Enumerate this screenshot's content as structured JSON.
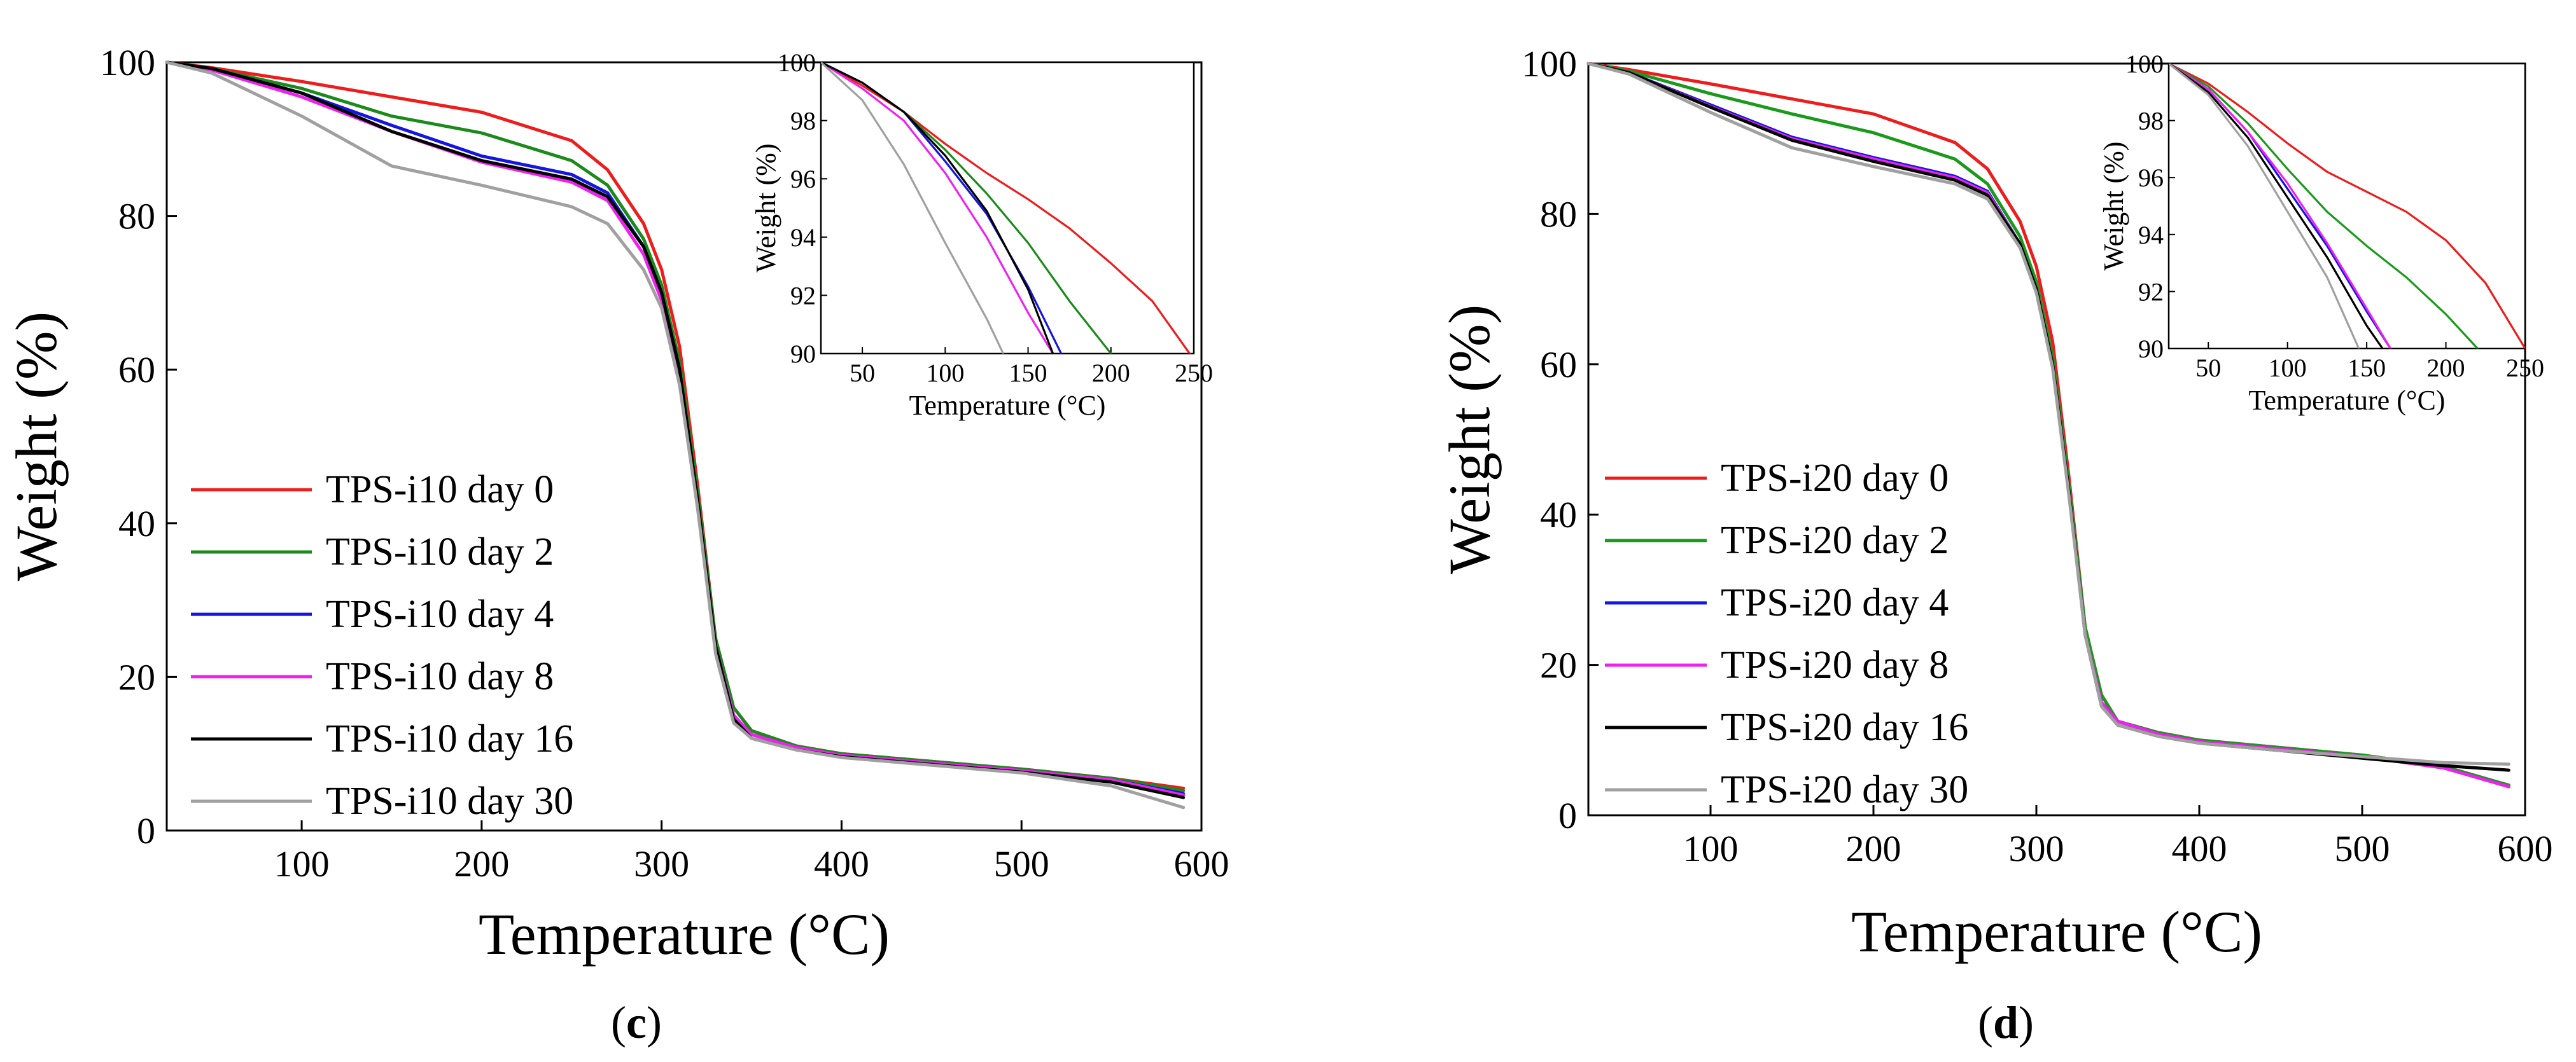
{
  "panels": [
    {
      "panel_label_open": "(",
      "panel_label_letter": "c",
      "panel_label_close": ")"
    },
    {
      "panel_label_open": "(",
      "panel_label_letter": "d",
      "panel_label_close": ")"
    }
  ],
  "chart_data": [
    {
      "type": "line",
      "title": "",
      "xlabel": "Temperature (°C)",
      "ylabel": "Weight (%)",
      "xlim": [
        25,
        600
      ],
      "ylim": [
        0,
        100
      ],
      "xticks": [
        100,
        200,
        300,
        400,
        500,
        600
      ],
      "yticks": [
        0,
        20,
        40,
        60,
        80,
        100
      ],
      "legend_position": "lower-left",
      "grid": false,
      "series": [
        {
          "name": "TPS-i10 day 0",
          "color": "#ee1c1c",
          "x": [
            25,
            50,
            100,
            150,
            200,
            250,
            270,
            290,
            300,
            310,
            320,
            330,
            340,
            350,
            375,
            400,
            450,
            500,
            550,
            590
          ],
          "y": [
            100,
            99.3,
            97.5,
            95.5,
            93.5,
            89.8,
            86,
            79,
            73,
            63,
            45,
            25,
            16,
            13,
            11,
            10,
            9,
            8,
            6.8,
            5.5
          ]
        },
        {
          "name": "TPS-i10 day 2",
          "color": "#1a8a1a",
          "x": [
            25,
            50,
            100,
            150,
            200,
            250,
            270,
            290,
            300,
            310,
            320,
            330,
            340,
            350,
            375,
            400,
            450,
            500,
            550,
            590
          ],
          "y": [
            100,
            99.2,
            96.6,
            93,
            90.8,
            87.2,
            84,
            77,
            71,
            61,
            44,
            25,
            16,
            13,
            11,
            10,
            9,
            8,
            6.8,
            5.2
          ]
        },
        {
          "name": "TPS-i10 day 4",
          "color": "#1515e0",
          "x": [
            25,
            50,
            100,
            150,
            200,
            250,
            270,
            290,
            300,
            310,
            320,
            330,
            340,
            350,
            375,
            400,
            450,
            500,
            550,
            590
          ],
          "y": [
            100,
            99.2,
            96,
            91.8,
            87.8,
            85.4,
            83,
            76,
            70,
            60,
            43,
            24,
            15,
            12.5,
            10.8,
            9.8,
            8.8,
            7.8,
            6.6,
            4.8
          ]
        },
        {
          "name": "TPS-i10 day 8",
          "color": "#ee22ee",
          "x": [
            25,
            50,
            100,
            150,
            200,
            250,
            270,
            290,
            300,
            310,
            320,
            330,
            340,
            350,
            375,
            400,
            450,
            500,
            550,
            590
          ],
          "y": [
            100,
            99,
            95.5,
            91,
            87,
            84.4,
            82,
            75,
            69,
            59,
            42,
            24,
            15,
            12.5,
            10.8,
            9.8,
            8.8,
            7.8,
            6.6,
            4.6
          ]
        },
        {
          "name": "TPS-i10 day 16",
          "color": "#000000",
          "x": [
            25,
            50,
            100,
            150,
            200,
            250,
            270,
            290,
            300,
            310,
            320,
            330,
            340,
            350,
            375,
            400,
            450,
            500,
            550,
            590
          ],
          "y": [
            100,
            99.2,
            96,
            91,
            87.2,
            84.8,
            82.5,
            76,
            70,
            60,
            43,
            24,
            14.5,
            12,
            10.5,
            9.6,
            8.6,
            7.6,
            6.3,
            4.3
          ]
        },
        {
          "name": "TPS-i10 day 30",
          "color": "#a0a0a0",
          "x": [
            25,
            50,
            100,
            150,
            200,
            250,
            270,
            290,
            300,
            310,
            320,
            330,
            340,
            350,
            375,
            400,
            450,
            500,
            550,
            590
          ],
          "y": [
            100,
            98.6,
            93,
            86.5,
            84,
            81.2,
            79,
            73,
            68,
            58,
            42,
            23,
            14,
            12,
            10.5,
            9.5,
            8.5,
            7.5,
            5.8,
            3
          ]
        }
      ],
      "inset": {
        "xlabel": "Temperature (°C)",
        "ylabel": "Weight (%)",
        "xlim": [
          25,
          250
        ],
        "ylim": [
          90,
          100
        ],
        "xticks": [
          50,
          100,
          150,
          200,
          250
        ],
        "yticks": [
          90,
          92,
          94,
          96,
          98,
          100
        ],
        "series": [
          {
            "name": "TPS-i10 day 0",
            "x": [
              25,
              50,
              75,
              100,
              125,
              150,
              175,
              200,
              225,
              250
            ],
            "y": [
              100,
              99.2,
              98.3,
              97.2,
              96.2,
              95.3,
              94.3,
              93.1,
              91.8,
              89.8
            ]
          },
          {
            "name": "TPS-i10 day 2",
            "x": [
              25,
              50,
              75,
              100,
              125,
              150,
              175,
              200
            ],
            "y": [
              100,
              99.3,
              98.3,
              97,
              95.5,
              93.8,
              91.8,
              90
            ]
          },
          {
            "name": "TPS-i10 day 4",
            "x": [
              25,
              50,
              75,
              100,
              125,
              150,
              170
            ],
            "y": [
              100,
              99.3,
              98.3,
              96.6,
              94.8,
              92.3,
              90
            ]
          },
          {
            "name": "TPS-i10 day 8",
            "x": [
              25,
              50,
              75,
              100,
              125,
              150,
              165
            ],
            "y": [
              100,
              99.1,
              98,
              96.2,
              94,
              91.4,
              90
            ]
          },
          {
            "name": "TPS-i10 day 16",
            "x": [
              25,
              50,
              75,
              100,
              125,
              150,
              165
            ],
            "y": [
              100,
              99.3,
              98.3,
              96.8,
              94.9,
              92.2,
              90
            ]
          },
          {
            "name": "TPS-i10 day 30",
            "x": [
              25,
              50,
              75,
              100,
              125,
              135
            ],
            "y": [
              100,
              98.7,
              96.5,
              93.8,
              91.2,
              90
            ]
          }
        ]
      }
    },
    {
      "type": "line",
      "title": "",
      "xlabel": "Temperature (°C)",
      "ylabel": "Weight (%)",
      "xlim": [
        25,
        600
      ],
      "ylim": [
        0,
        100
      ],
      "xticks": [
        100,
        200,
        300,
        400,
        500,
        600
      ],
      "yticks": [
        0,
        20,
        40,
        60,
        80,
        100
      ],
      "legend_position": "lower-left",
      "grid": false,
      "series": [
        {
          "name": "TPS-i20 day 0",
          "color": "#ee1c1c",
          "x": [
            25,
            50,
            100,
            150,
            200,
            250,
            270,
            290,
            300,
            310,
            320,
            330,
            340,
            350,
            375,
            400,
            450,
            500,
            550,
            590
          ],
          "y": [
            100,
            99.2,
            97.3,
            95.3,
            93.3,
            89.5,
            86,
            79,
            73,
            63,
            45,
            25,
            16,
            12.5,
            11,
            10,
            9,
            8,
            6.5,
            4
          ]
        },
        {
          "name": "TPS-i20 day 2",
          "color": "#1a9a1a",
          "x": [
            25,
            50,
            100,
            150,
            200,
            250,
            270,
            290,
            300,
            310,
            320,
            330,
            340,
            350,
            375,
            400,
            450,
            500,
            550,
            590
          ],
          "y": [
            100,
            99,
            96,
            93.3,
            90.8,
            87.3,
            84,
            77,
            71,
            61,
            44,
            25,
            16,
            12.5,
            11,
            10,
            9,
            8,
            6.5,
            4
          ]
        },
        {
          "name": "TPS-i20 day 4",
          "color": "#1515e0",
          "x": [
            25,
            50,
            100,
            150,
            200,
            250,
            270,
            290,
            300,
            310,
            320,
            330,
            340,
            350,
            375,
            400,
            450,
            500,
            550,
            590
          ],
          "y": [
            100,
            98.8,
            94.5,
            90.2,
            87.5,
            85,
            83,
            76,
            70,
            60,
            43,
            24,
            15,
            12.5,
            10.8,
            9.8,
            8.8,
            7.8,
            6.3,
            3.8
          ]
        },
        {
          "name": "TPS-i20 day 8",
          "color": "#ee22ee",
          "x": [
            25,
            50,
            100,
            150,
            200,
            250,
            270,
            290,
            300,
            310,
            320,
            330,
            340,
            350,
            375,
            400,
            450,
            500,
            550,
            590
          ],
          "y": [
            100,
            98.8,
            94.3,
            90,
            87.3,
            84.8,
            82.8,
            76,
            70,
            60,
            43,
            24,
            15,
            12.5,
            10.8,
            9.8,
            8.8,
            7.8,
            6.3,
            3.8
          ]
        },
        {
          "name": "TPS-i20 day 16",
          "color": "#000000",
          "x": [
            25,
            50,
            100,
            150,
            200,
            250,
            270,
            290,
            300,
            310,
            320,
            330,
            340,
            350,
            375,
            400,
            450,
            500,
            550,
            590
          ],
          "y": [
            100,
            98.8,
            94.2,
            89.8,
            87,
            84.5,
            82.5,
            76,
            70,
            60,
            43,
            24,
            14.5,
            12,
            10.5,
            9.6,
            8.6,
            7.6,
            6.6,
            6
          ]
        },
        {
          "name": "TPS-i20 day 30",
          "color": "#a0a0a0",
          "x": [
            25,
            50,
            100,
            150,
            200,
            250,
            270,
            290,
            300,
            310,
            320,
            330,
            340,
            350,
            375,
            400,
            450,
            500,
            550,
            590
          ],
          "y": [
            100,
            98.6,
            93.5,
            88.8,
            86.3,
            84,
            82,
            75.5,
            69.5,
            59.5,
            42.5,
            24,
            14.5,
            12,
            10.5,
            9.6,
            8.6,
            7.8,
            7,
            6.8
          ]
        }
      ],
      "inset": {
        "xlabel": "Temperature (°C)",
        "ylabel": "Weight (%)",
        "xlim": [
          25,
          250
        ],
        "ylim": [
          90,
          100
        ],
        "xticks": [
          50,
          100,
          150,
          200,
          250
        ],
        "yticks": [
          90,
          92,
          94,
          96,
          98,
          100
        ],
        "series": [
          {
            "name": "TPS-i20 day 0",
            "x": [
              25,
              50,
              75,
              100,
              125,
              150,
              175,
              200,
              225,
              250
            ],
            "y": [
              100,
              99.3,
              98.3,
              97.2,
              96.2,
              95.5,
              94.8,
              93.8,
              92.3,
              90
            ]
          },
          {
            "name": "TPS-i20 day 2",
            "x": [
              25,
              50,
              75,
              100,
              125,
              150,
              175,
              200,
              220
            ],
            "y": [
              100,
              99.2,
              97.9,
              96.3,
              94.8,
              93.6,
              92.5,
              91.2,
              90
            ]
          },
          {
            "name": "TPS-i20 day 4",
            "x": [
              25,
              50,
              75,
              100,
              125,
              150,
              165
            ],
            "y": [
              100,
              99.1,
              97.6,
              95.6,
              93.6,
              91.3,
              90
            ]
          },
          {
            "name": "TPS-i20 day 8",
            "x": [
              25,
              50,
              75,
              100,
              125,
              150,
              165
            ],
            "y": [
              100,
              99.1,
              97.6,
              95.8,
              93.7,
              91.4,
              90
            ]
          },
          {
            "name": "TPS-i20 day 16",
            "x": [
              25,
              50,
              75,
              100,
              125,
              150,
              160
            ],
            "y": [
              100,
              99,
              97.4,
              95.3,
              93.2,
              90.8,
              90
            ]
          },
          {
            "name": "TPS-i20 day 30",
            "x": [
              25,
              50,
              75,
              100,
              125,
              145
            ],
            "y": [
              100,
              98.9,
              97.1,
              94.8,
              92.5,
              90
            ]
          }
        ]
      }
    }
  ]
}
